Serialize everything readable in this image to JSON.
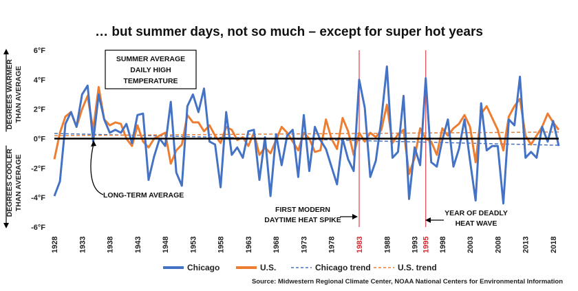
{
  "chart_data": {
    "type": "line",
    "title": "… but summer days, not so much – except for super hot years",
    "inset_label": [
      "SUMMER AVERAGE",
      "DAILY HIGH",
      "TEMPERATURE"
    ],
    "ylabel_warmer": [
      "DEGREES WARMER",
      "THAN AVERAGE"
    ],
    "ylabel_cooler": [
      "DEGREES COOLER",
      "THAN AVERAGE"
    ],
    "ylim": [
      -6,
      6
    ],
    "yticks": [
      6,
      4,
      2,
      0,
      -2,
      -4,
      -6
    ],
    "ytick_labels": [
      "6°F",
      "4°F",
      "2°F",
      "0°F",
      "-2°F",
      "-4°F",
      "-6°F"
    ],
    "xlim": [
      1928,
      2019
    ],
    "xticks": [
      1928,
      1933,
      1938,
      1943,
      1948,
      1953,
      1958,
      1963,
      1968,
      1973,
      1978,
      1983,
      1988,
      1993,
      1995,
      1998,
      2003,
      2008,
      2013,
      2018
    ],
    "highlight_years": [
      1983,
      1995
    ],
    "grid": false,
    "legend_position": "bottom",
    "series": [
      {
        "name": "Chicago",
        "color": "#4472c4",
        "x": [
          1928,
          1929,
          1930,
          1931,
          1932,
          1933,
          1934,
          1935,
          1936,
          1937,
          1938,
          1939,
          1940,
          1941,
          1942,
          1943,
          1944,
          1945,
          1946,
          1947,
          1948,
          1949,
          1950,
          1951,
          1952,
          1953,
          1954,
          1955,
          1956,
          1957,
          1958,
          1959,
          1960,
          1961,
          1962,
          1963,
          1964,
          1965,
          1966,
          1967,
          1968,
          1969,
          1970,
          1971,
          1972,
          1973,
          1974,
          1975,
          1976,
          1977,
          1978,
          1979,
          1980,
          1981,
          1982,
          1983,
          1984,
          1985,
          1986,
          1987,
          1988,
          1989,
          1990,
          1991,
          1992,
          1993,
          1994,
          1995,
          1996,
          1997,
          1998,
          1999,
          2000,
          2001,
          2002,
          2003,
          2004,
          2005,
          2006,
          2007,
          2008,
          2009,
          2010,
          2011,
          2012,
          2013,
          2014,
          2015,
          2016,
          2017,
          2018,
          2019
        ],
        "values": [
          -3.9,
          -2.9,
          1.0,
          1.8,
          0.8,
          3.0,
          3.6,
          -0.2,
          3.0,
          1.3,
          0.4,
          0.6,
          0.4,
          1.0,
          -0.3,
          1.6,
          1.7,
          -2.8,
          -1.2,
          0.0,
          -0.5,
          2.5,
          -2.3,
          -3.2,
          2.2,
          3.0,
          1.8,
          3.4,
          -0.2,
          -0.4,
          -3.3,
          1.8,
          -1.1,
          -0.6,
          -1.3,
          0.5,
          0.6,
          -2.8,
          0.1,
          -3.9,
          0.3,
          -1.8,
          0.2,
          0.6,
          -2.6,
          1.6,
          -2.2,
          0.8,
          -0.1,
          -0.7,
          -1.9,
          -3.1,
          0.0,
          -1.4,
          -2.2,
          4.0,
          2.1,
          -2.6,
          -1.5,
          1.3,
          4.9,
          -1.3,
          -0.9,
          2.9,
          -4.1,
          -0.6,
          -1.8,
          4.1,
          -1.6,
          -1.9,
          -0.1,
          1.3,
          -1.9,
          -0.7,
          1.3,
          -1.5,
          -4.2,
          2.4,
          -0.8,
          -0.5,
          -0.5,
          -4.4,
          1.3,
          0.9,
          4.2,
          -1.3,
          -0.9,
          -1.3,
          0.8,
          -0.2,
          1.2,
          -0.5
        ]
      },
      {
        "name": "U.S.",
        "color": "#ed7d31",
        "x": [
          1928,
          1929,
          1930,
          1931,
          1932,
          1933,
          1934,
          1935,
          1936,
          1937,
          1938,
          1939,
          1940,
          1941,
          1942,
          1943,
          1944,
          1945,
          1946,
          1947,
          1948,
          1949,
          1950,
          1951,
          1952,
          1953,
          1954,
          1955,
          1956,
          1957,
          1958,
          1959,
          1960,
          1961,
          1962,
          1963,
          1964,
          1965,
          1966,
          1967,
          1968,
          1969,
          1970,
          1971,
          1972,
          1973,
          1974,
          1975,
          1976,
          1977,
          1978,
          1979,
          1980,
          1981,
          1982,
          1983,
          1984,
          1985,
          1986,
          1987,
          1988,
          1989,
          1990,
          1991,
          1992,
          1993,
          1994,
          1995,
          1996,
          1997,
          1998,
          1999,
          2000,
          2001,
          2002,
          2003,
          2004,
          2005,
          2006,
          2007,
          2008,
          2009,
          2010,
          2011,
          2012,
          2013,
          2014,
          2015,
          2016,
          2017,
          2018,
          2019
        ],
        "values": [
          -1.4,
          0.4,
          1.5,
          1.8,
          0.8,
          2.0,
          2.9,
          0.6,
          3.5,
          1.3,
          0.9,
          1.1,
          1.0,
          0.0,
          -0.5,
          0.9,
          -0.2,
          -0.6,
          0.0,
          0.2,
          0.4,
          -1.7,
          -0.8,
          -0.4,
          1.6,
          1.1,
          1.1,
          0.5,
          0.9,
          0.2,
          -0.3,
          0.8,
          0.6,
          -0.1,
          0.1,
          -0.5,
          0.4,
          -1.1,
          -0.6,
          -1.0,
          -0.1,
          0.8,
          0.4,
          -0.2,
          -0.8,
          0.4,
          0.0,
          -0.9,
          -0.8,
          1.3,
          0.0,
          -0.7,
          1.4,
          0.5,
          -1.1,
          0.4,
          -0.2,
          0.4,
          0.1,
          0.6,
          2.3,
          -0.3,
          0.3,
          0.6,
          -2.4,
          -1.3,
          0.7,
          0.0,
          -0.2,
          -1.1,
          0.7,
          0.2,
          0.7,
          1.0,
          1.6,
          0.8,
          -1.6,
          1.7,
          2.2,
          1.4,
          0.6,
          -0.8,
          1.5,
          2.2,
          2.7,
          0.2,
          -0.4,
          0.2,
          0.8,
          1.7,
          1.1,
          0.6
        ]
      },
      {
        "name": "Chicago trend",
        "color": "#4472c4",
        "dashed": true,
        "x": [
          1928,
          2019
        ],
        "values": [
          0.35,
          -0.45
        ]
      },
      {
        "name": "U.S. trend",
        "color": "#ed7d31",
        "dashed": true,
        "x": [
          1928,
          2019
        ],
        "values": [
          0.2,
          0.45
        ]
      }
    ],
    "annotations": {
      "long_term_average": "LONG-TERM AVERAGE",
      "heat_spike": [
        "FIRST MODERN",
        "DAYTIME HEAT SPIKE"
      ],
      "heat_wave": [
        "YEAR OF DEADLY",
        "HEAT WAVE"
      ]
    },
    "source": "Source: Midwestern Regional Climate Center, NOAA National Centers for Environmental Information"
  }
}
